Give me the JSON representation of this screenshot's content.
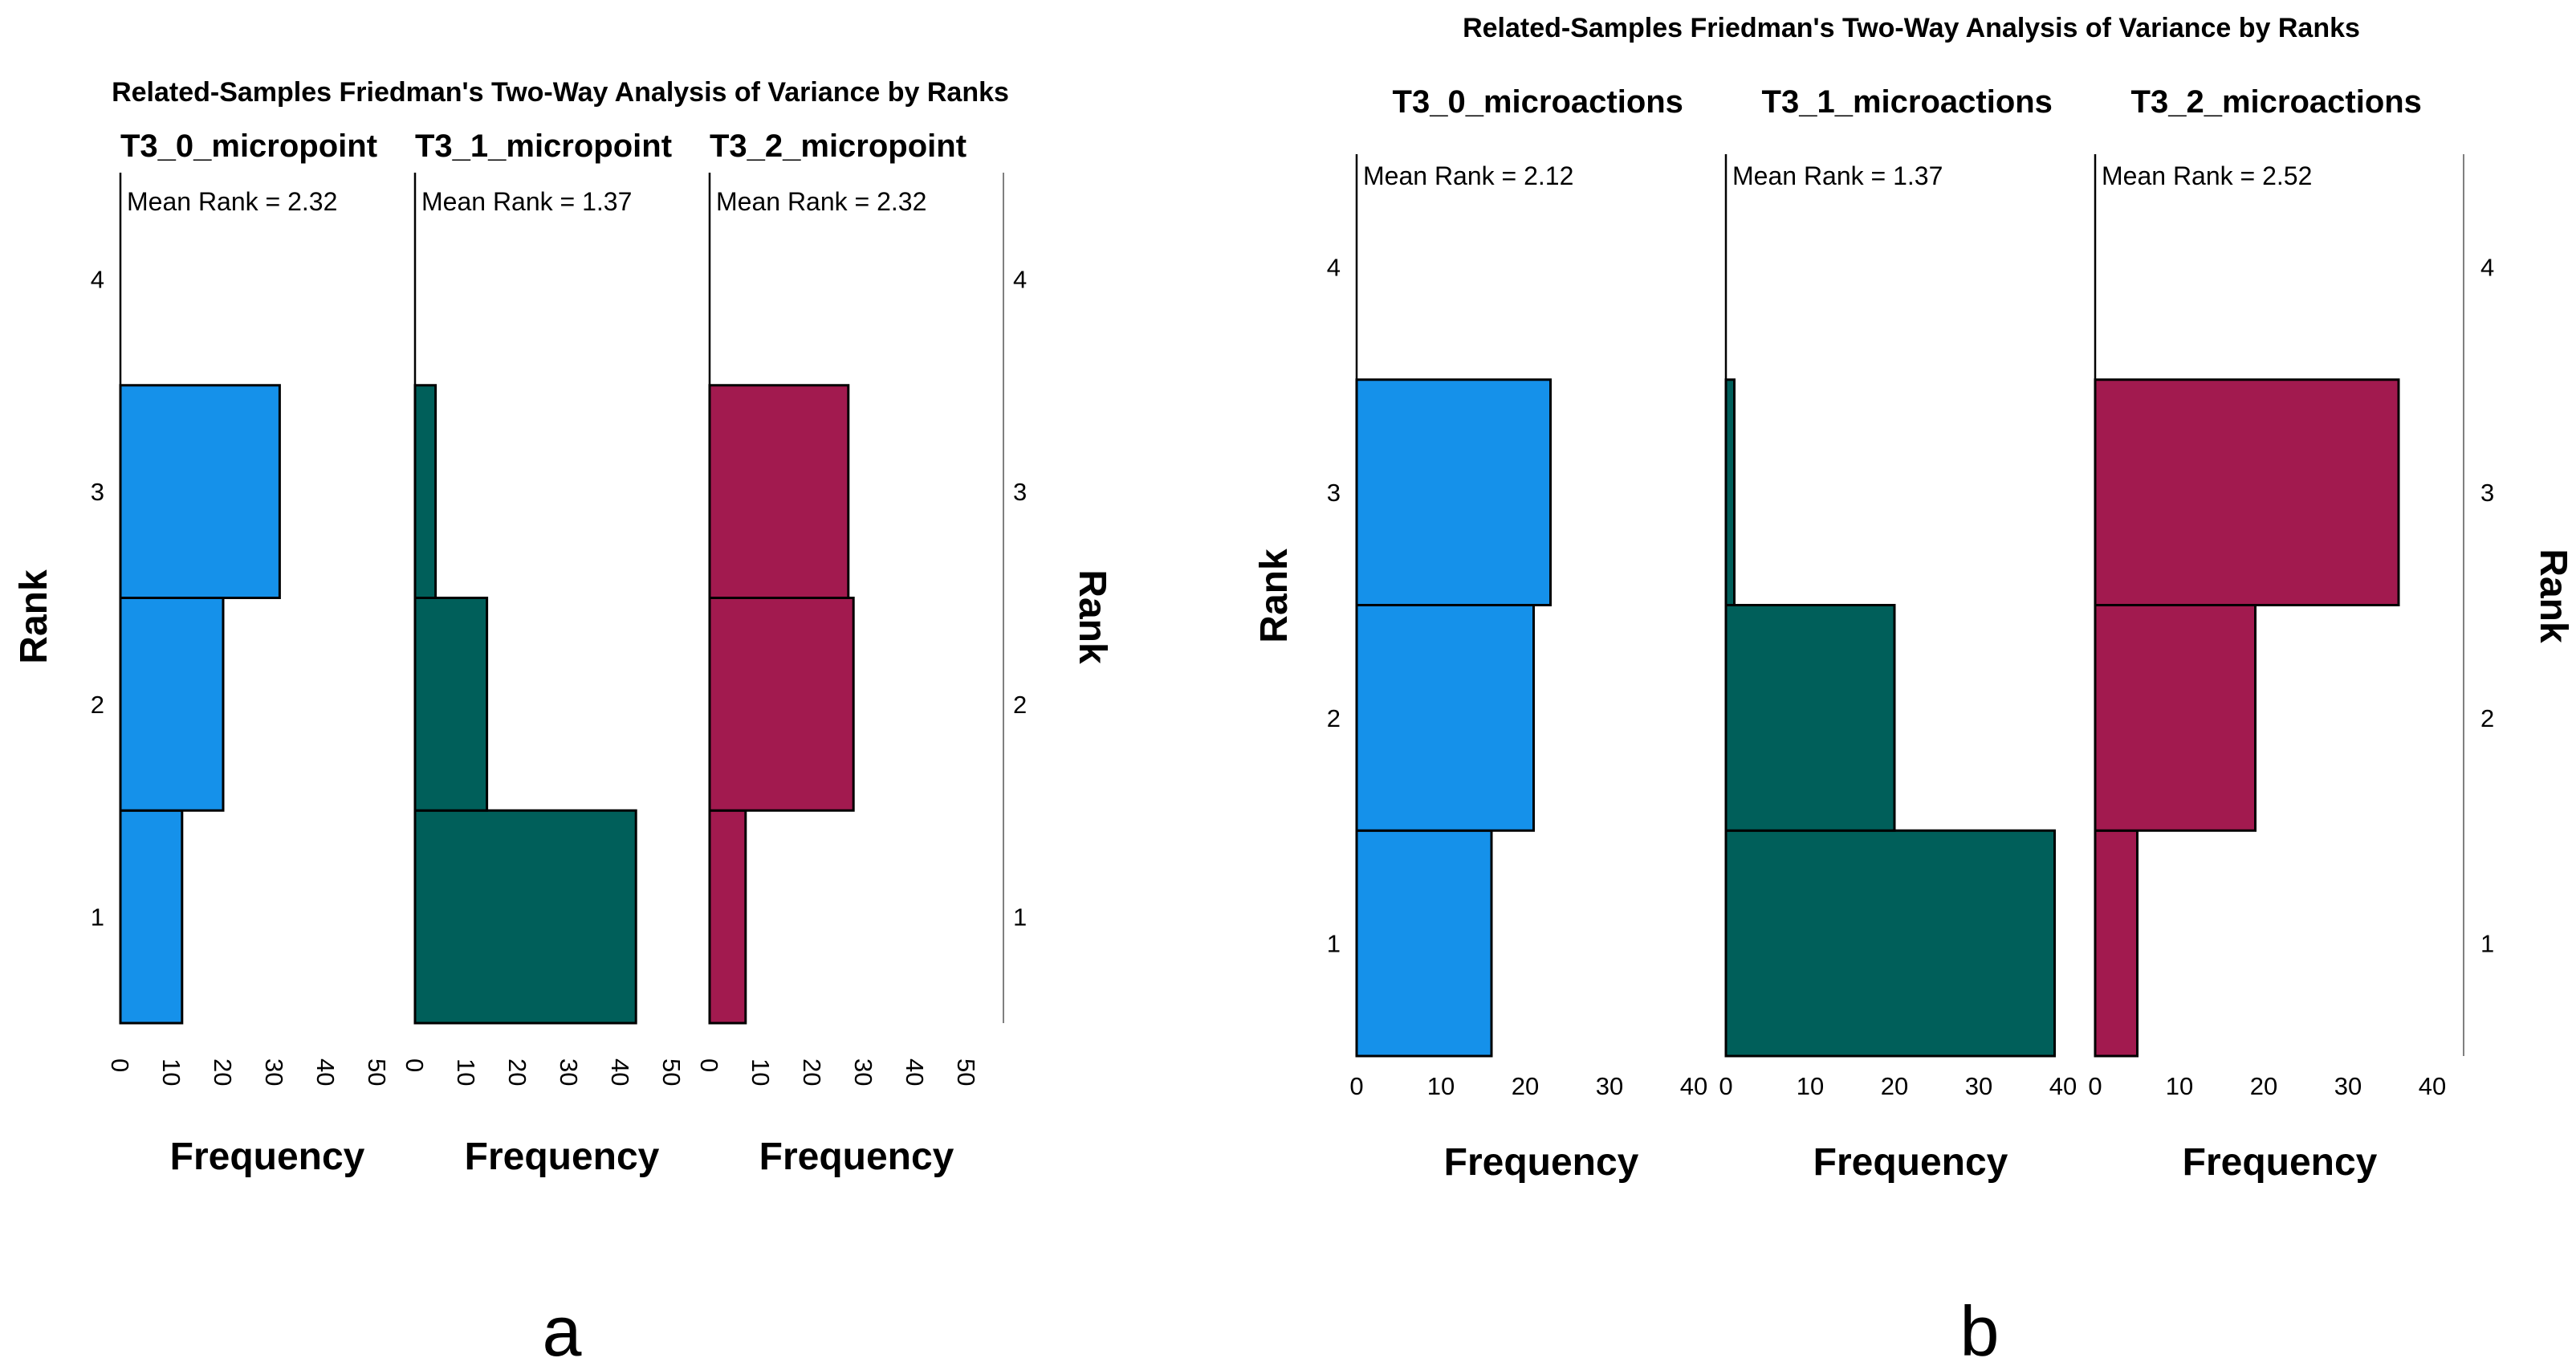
{
  "chart_data": [
    {
      "type": "bar",
      "orientation": "horizontal",
      "panel_label": "a",
      "title": "Related-Samples Friedman's Two-Way Analysis of Variance by Ranks",
      "ylabel": "Rank",
      "xlabel": "Frequency",
      "categories": [
        "1",
        "2",
        "3",
        "4"
      ],
      "ylim": [
        0.5,
        4.5
      ],
      "xlim": [
        0,
        50
      ],
      "xticks": [
        "0",
        "10",
        "20",
        "30",
        "40",
        "50"
      ],
      "series": [
        {
          "name": "T3_0_micropoint",
          "mean_rank_label": "Mean Rank = 2.32",
          "color": "#1591EA",
          "values": [
            12,
            20,
            31,
            0
          ]
        },
        {
          "name": "T3_1_micropoint",
          "mean_rank_label": "Mean Rank = 1.37",
          "color": "#005F5A",
          "values": [
            43,
            14,
            4,
            0
          ]
        },
        {
          "name": "T3_2_micropoint",
          "mean_rank_label": "Mean Rank = 2.32",
          "color": "#A21A4F",
          "values": [
            7,
            28,
            27,
            0
          ]
        }
      ]
    },
    {
      "type": "bar",
      "orientation": "horizontal",
      "panel_label": "b",
      "title": "Related-Samples Friedman's Two-Way Analysis of Variance by Ranks",
      "ylabel": "Rank",
      "xlabel": "Frequency",
      "categories": [
        "1",
        "2",
        "3",
        "4"
      ],
      "ylim": [
        0.5,
        4.5
      ],
      "xlim": [
        0,
        43
      ],
      "xticks": [
        "0",
        "10",
        "20",
        "30",
        "40"
      ],
      "series": [
        {
          "name": "T3_0_microactions",
          "mean_rank_label": "Mean Rank = 2.12",
          "color": "#1591EA",
          "values": [
            16,
            21,
            23,
            0
          ]
        },
        {
          "name": "T3_1_microactions",
          "mean_rank_label": "Mean Rank = 1.37",
          "color": "#005F5A",
          "values": [
            39,
            20,
            1,
            0
          ]
        },
        {
          "name": "T3_2_microactions",
          "mean_rank_label": "Mean Rank = 2.52",
          "color": "#A21A4F",
          "values": [
            5,
            19,
            36,
            0
          ]
        }
      ]
    }
  ],
  "colors": {
    "axis": "#000000",
    "frame": "#808080",
    "bar_edge": "#000000"
  }
}
